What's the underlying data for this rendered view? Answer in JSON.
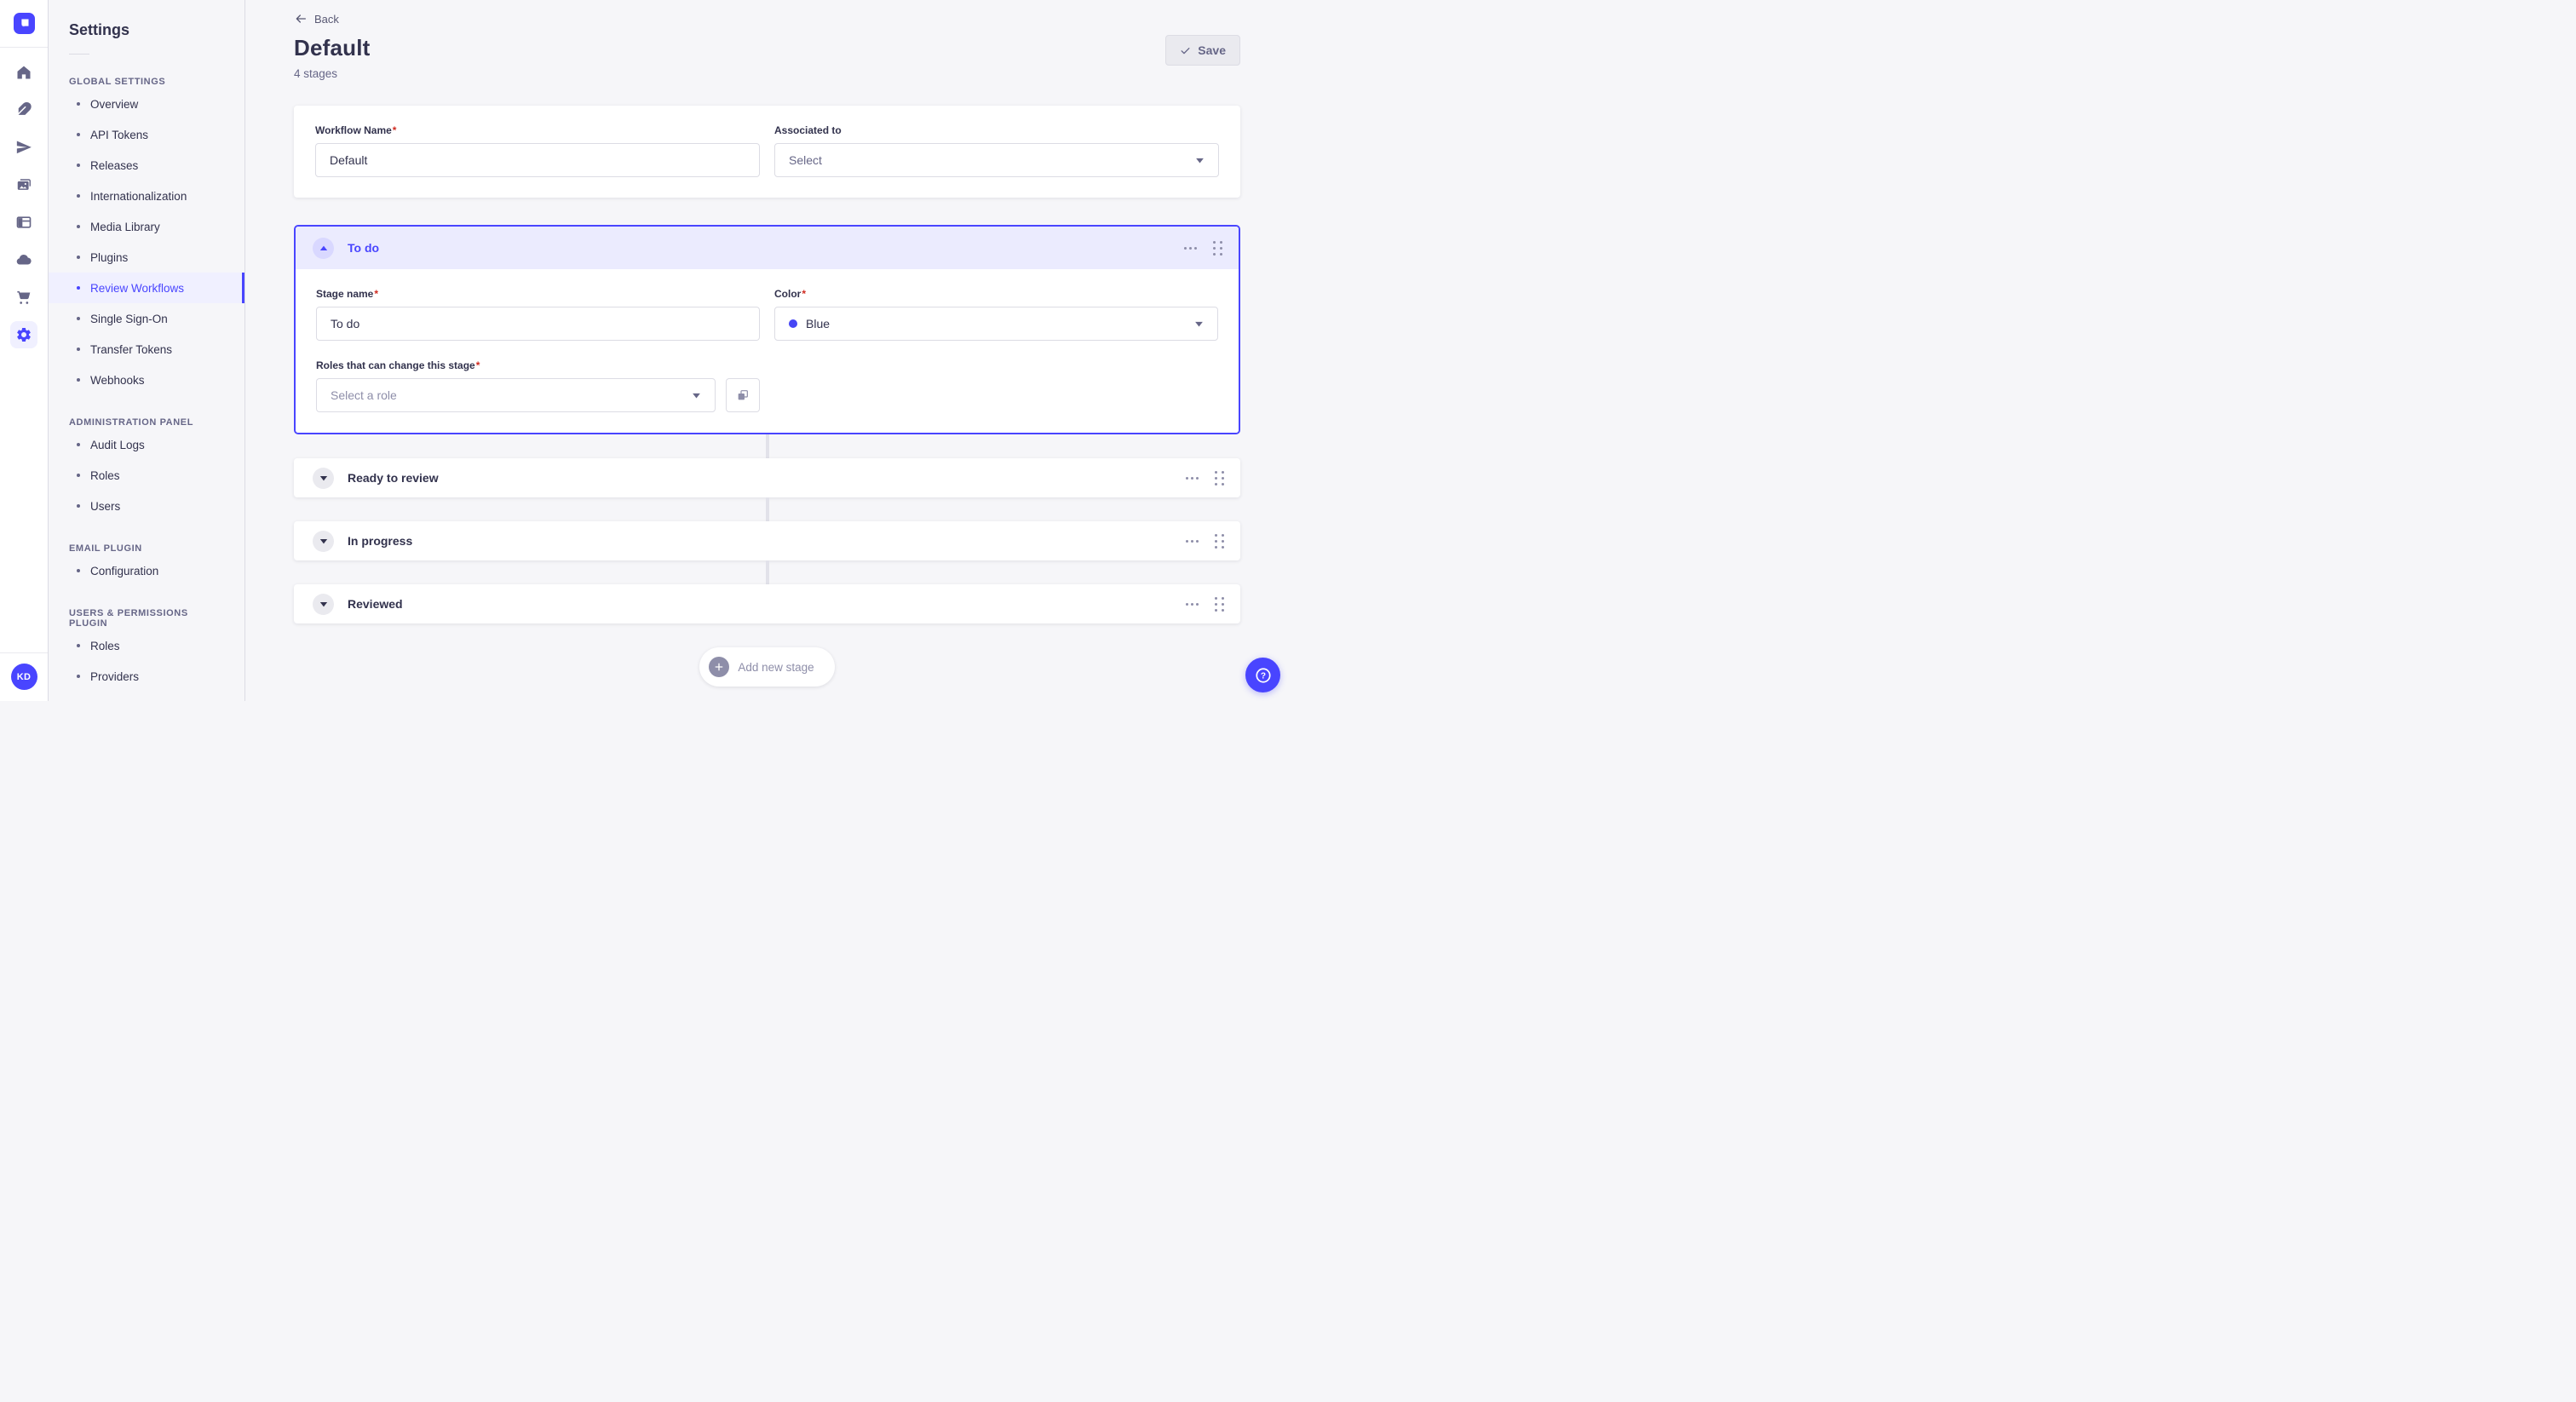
{
  "app": {
    "name": "strapi-admin"
  },
  "ui": {
    "required_marker": "*"
  },
  "colors": {
    "accent": "#4945ff",
    "danger": "#d02b20",
    "stage_blue_dot": "#4646f5"
  },
  "rail": {
    "logo_icon": "strapi-logo",
    "icons": [
      "home",
      "feather-content",
      "paper-plane",
      "media-library",
      "content-type-builder",
      "cloud",
      "marketplace-cart",
      "settings-gear"
    ],
    "active_icon": "settings-gear",
    "user_initials": "KD"
  },
  "sidebar": {
    "title": "Settings",
    "sections": [
      {
        "label": "GLOBAL SETTINGS",
        "items": [
          {
            "label": "Overview",
            "active": false
          },
          {
            "label": "API Tokens",
            "active": false
          },
          {
            "label": "Releases",
            "active": false
          },
          {
            "label": "Internationalization",
            "active": false
          },
          {
            "label": "Media Library",
            "active": false
          },
          {
            "label": "Plugins",
            "active": false
          },
          {
            "label": "Review Workflows",
            "active": true
          },
          {
            "label": "Single Sign-On",
            "active": false
          },
          {
            "label": "Transfer Tokens",
            "active": false
          },
          {
            "label": "Webhooks",
            "active": false
          }
        ]
      },
      {
        "label": "ADMINISTRATION PANEL",
        "items": [
          {
            "label": "Audit Logs",
            "active": false
          },
          {
            "label": "Roles",
            "active": false
          },
          {
            "label": "Users",
            "active": false
          }
        ]
      },
      {
        "label": "EMAIL PLUGIN",
        "items": [
          {
            "label": "Configuration",
            "active": false
          }
        ]
      },
      {
        "label": "USERS & PERMISSIONS PLUGIN",
        "items": [
          {
            "label": "Roles",
            "active": false
          },
          {
            "label": "Providers",
            "active": false
          }
        ]
      }
    ]
  },
  "header": {
    "back_label": "Back",
    "title": "Default",
    "subtitle": "4 stages",
    "save_label": "Save"
  },
  "workflow_form": {
    "name_label": "Workflow Name",
    "name_value": "Default",
    "associated_label": "Associated to",
    "associated_placeholder": "Select"
  },
  "stages": {
    "expanded": {
      "title": "To do",
      "stage_name_label": "Stage name",
      "stage_name_value": "To do",
      "color_label": "Color",
      "color_value": "Blue",
      "roles_label": "Roles that can change this stage",
      "roles_placeholder": "Select a role"
    },
    "collapsed": [
      {
        "title": "Ready to review"
      },
      {
        "title": "In progress"
      },
      {
        "title": "Reviewed"
      }
    ],
    "add_label": "Add new stage"
  }
}
